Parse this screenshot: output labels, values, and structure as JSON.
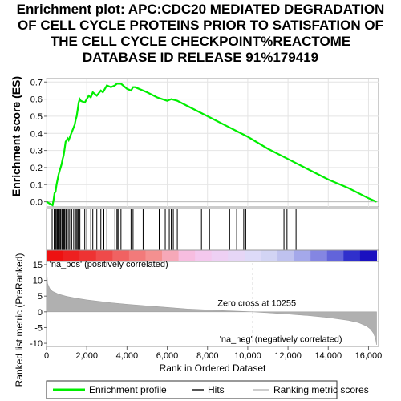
{
  "title_lines": [
    "Enrichment plot: APC:CDC20 MEDIATED DEGRADATION",
    "OF CELL CYCLE PROTEINS PRIOR TO SATISFATION OF",
    "THE CELL CYCLE CHECKPOINT%REACTOME",
    "DATABASE ID RELEASE 91%179419"
  ],
  "chart_data": {
    "type": "line",
    "x_range": [
      0,
      16500
    ],
    "x_ticks": [
      0,
      2000,
      4000,
      6000,
      8000,
      10000,
      12000,
      14000,
      16000
    ],
    "x_tick_labels": [
      "0",
      "2,000",
      "4,000",
      "6,000",
      "8,000",
      "10,000",
      "12,000",
      "14,000",
      "16,000"
    ],
    "xlabel": "Rank in Ordered Dataset",
    "es_panel": {
      "ylabel": "Enrichment score (ES)",
      "ylim": [
        -0.03,
        0.72
      ],
      "y_ticks": [
        0.0,
        0.1,
        0.2,
        0.3,
        0.4,
        0.5,
        0.6,
        0.7
      ],
      "y_tick_labels": [
        "0.0",
        "0.1",
        "0.2",
        "0.3",
        "0.4",
        "0.5",
        "0.6",
        "0.7"
      ],
      "grid": true,
      "series": [
        {
          "name": "Enrichment profile",
          "color": "#00ee00",
          "x": [
            0,
            300,
            350,
            400,
            450,
            500,
            550,
            600,
            650,
            700,
            750,
            800,
            850,
            900,
            950,
            1000,
            1050,
            1100,
            1200,
            1300,
            1400,
            1450,
            1500,
            1550,
            1600,
            1650,
            1700,
            1900,
            2000,
            2100,
            2200,
            2300,
            2400,
            2500,
            2700,
            2800,
            2900,
            3000,
            3200,
            3400,
            3500,
            3600,
            3700,
            3800,
            4000,
            4200,
            4300,
            4400,
            4600,
            5000,
            5500,
            6000,
            6200,
            6500,
            7000,
            8000,
            9000,
            10000,
            11000,
            12000,
            13000,
            14000,
            15000,
            16000,
            16400
          ],
          "y": [
            0.0,
            -0.02,
            0.01,
            0.05,
            0.06,
            0.1,
            0.13,
            0.16,
            0.18,
            0.2,
            0.22,
            0.25,
            0.27,
            0.31,
            0.35,
            0.36,
            0.37,
            0.36,
            0.39,
            0.42,
            0.45,
            0.48,
            0.5,
            0.54,
            0.58,
            0.6,
            0.59,
            0.58,
            0.6,
            0.62,
            0.61,
            0.64,
            0.63,
            0.62,
            0.65,
            0.64,
            0.66,
            0.68,
            0.67,
            0.68,
            0.69,
            0.69,
            0.69,
            0.68,
            0.66,
            0.65,
            0.67,
            0.67,
            0.66,
            0.64,
            0.61,
            0.59,
            0.6,
            0.59,
            0.56,
            0.5,
            0.44,
            0.38,
            0.31,
            0.25,
            0.19,
            0.13,
            0.08,
            0.02,
            0.0
          ]
        }
      ]
    },
    "hits": [
      280,
      380,
      430,
      470,
      520,
      560,
      600,
      650,
      700,
      760,
      800,
      860,
      900,
      960,
      1000,
      1080,
      1150,
      1250,
      1350,
      1420,
      1470,
      1520,
      1570,
      1620,
      1660,
      1900,
      2000,
      2200,
      2300,
      2500,
      2700,
      2850,
      3000,
      3400,
      3500,
      3550,
      3600,
      3700,
      4200,
      4300,
      4800,
      5600,
      5900,
      6100,
      6200,
      6300,
      6500,
      7700,
      8100,
      9100,
      9450,
      9800,
      9900,
      11800,
      11950,
      12400
    ],
    "rank_bar_colors": [
      "#ee1111",
      "#ee2020",
      "#ee3333",
      "#ef4a4a",
      "#f06262",
      "#f27a7a",
      "#f49090",
      "#f6a8b8",
      "#f7bde0",
      "#f4c8ee",
      "#eed0f4",
      "#e6d6f6",
      "#dddaf8",
      "#d2d4f4",
      "#bfc2ef",
      "#a4a8ea",
      "#8486e2",
      "#6264da",
      "#3030cc",
      "#1a10c0"
    ],
    "metric_panel": {
      "ylabel": "Ranked list metric (PreRanked)",
      "ylim": [
        -11,
        16
      ],
      "y_ticks": [
        -10,
        -5,
        0,
        5,
        10,
        15
      ],
      "y_tick_labels": [
        "-10",
        "-5",
        "0",
        "5",
        "10",
        "15"
      ],
      "zero_cross": 10255,
      "zero_cross_label": "Zero cross at 10255",
      "pos_label": "'na_pos' (positively correlated)",
      "neg_label": "'na_neg' (negatively correlated)",
      "curve_x": [
        0,
        50,
        150,
        300,
        600,
        1000,
        1500,
        2000,
        3000,
        4000,
        5000,
        6000,
        7000,
        8000,
        9000,
        10255,
        11000,
        12000,
        13000,
        14000,
        15000,
        15500,
        15900,
        16100,
        16250,
        16350,
        16400
      ],
      "curve_y": [
        14.0,
        9.0,
        7.5,
        6.5,
        5.6,
        4.9,
        4.3,
        3.8,
        3.0,
        2.4,
        1.9,
        1.4,
        0.9,
        0.6,
        0.3,
        0.0,
        -0.3,
        -0.7,
        -1.2,
        -1.8,
        -2.7,
        -3.4,
        -4.5,
        -5.5,
        -6.8,
        -8.5,
        -10.5
      ]
    },
    "legend": [
      {
        "label": "Enrichment profile",
        "color": "#00ee00",
        "kind": "line"
      },
      {
        "label": "Hits",
        "color": "#555555",
        "kind": "line"
      },
      {
        "label": "Ranking metric scores",
        "color": "#cccccc",
        "kind": "line"
      }
    ]
  }
}
